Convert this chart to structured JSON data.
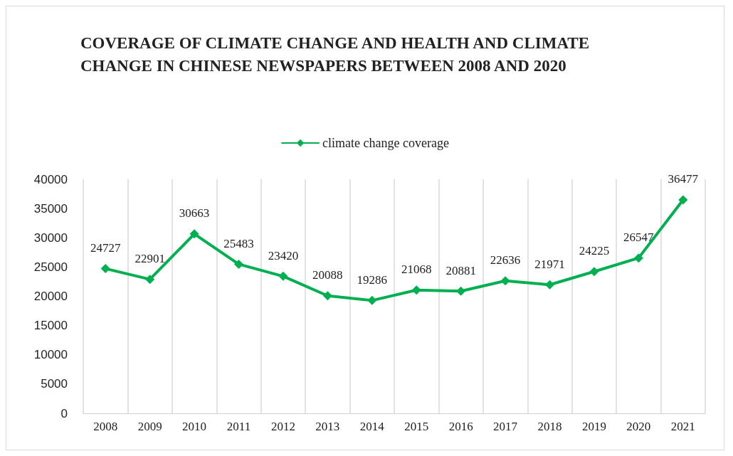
{
  "chart_data": {
    "type": "line",
    "title": "COVERAGE OF CLIMATE CHANGE AND HEALTH AND CLIMATE CHANGE IN CHINESE NEWSPAPERS BETWEEN 2008 AND 2020",
    "categories": [
      "2008",
      "2009",
      "2010",
      "2011",
      "2012",
      "2013",
      "2014",
      "2015",
      "2016",
      "2017",
      "2018",
      "2019",
      "2020",
      "2021"
    ],
    "series": [
      {
        "name": "climate change coverage",
        "color": "#00b050",
        "values": [
          24727,
          22901,
          30663,
          25483,
          23420,
          20088,
          19286,
          21068,
          20881,
          22636,
          21971,
          24225,
          26547,
          36477
        ]
      }
    ],
    "ylim": [
      0,
      40000
    ],
    "yticks": [
      0,
      5000,
      10000,
      15000,
      20000,
      25000,
      30000,
      35000,
      40000
    ],
    "grid": "x",
    "legend": "top",
    "marker": "diamond",
    "line_style": "solid",
    "data_labels": true
  }
}
